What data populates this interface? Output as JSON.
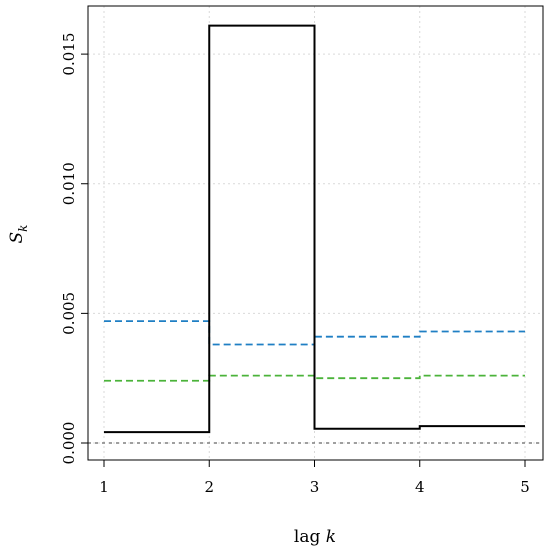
{
  "chart_data": {
    "type": "line",
    "step": true,
    "xlabel_text": "lag ",
    "xlabel_var": "k",
    "ylabel_var": "S",
    "ylabel_sub": "k",
    "xlim": [
      1,
      5
    ],
    "ylim": [
      0,
      0.0162
    ],
    "x_ticks": [
      1,
      2,
      3,
      4,
      5
    ],
    "y_ticks": [
      {
        "value": 0.0,
        "label": "0.000"
      },
      {
        "value": 0.005,
        "label": "0.005"
      },
      {
        "value": 0.01,
        "label": "0.010"
      },
      {
        "value": 0.015,
        "label": "0.015"
      }
    ],
    "grid": true,
    "series": [
      {
        "values": [
          0.00042,
          0.0161,
          0.00055,
          0.00065
        ],
        "color": "#000000",
        "style": "solid"
      },
      {
        "values": [
          0.0047,
          0.0038,
          0.0041,
          0.0043
        ],
        "color": "#1f7fc4",
        "style": "dashed"
      },
      {
        "values": [
          0.0024,
          0.0026,
          0.0025,
          0.0026
        ],
        "color": "#4bb33a",
        "style": "dashed"
      }
    ],
    "reference_line": {
      "value": 0.0,
      "color": "#666666",
      "style": "dotted"
    }
  }
}
